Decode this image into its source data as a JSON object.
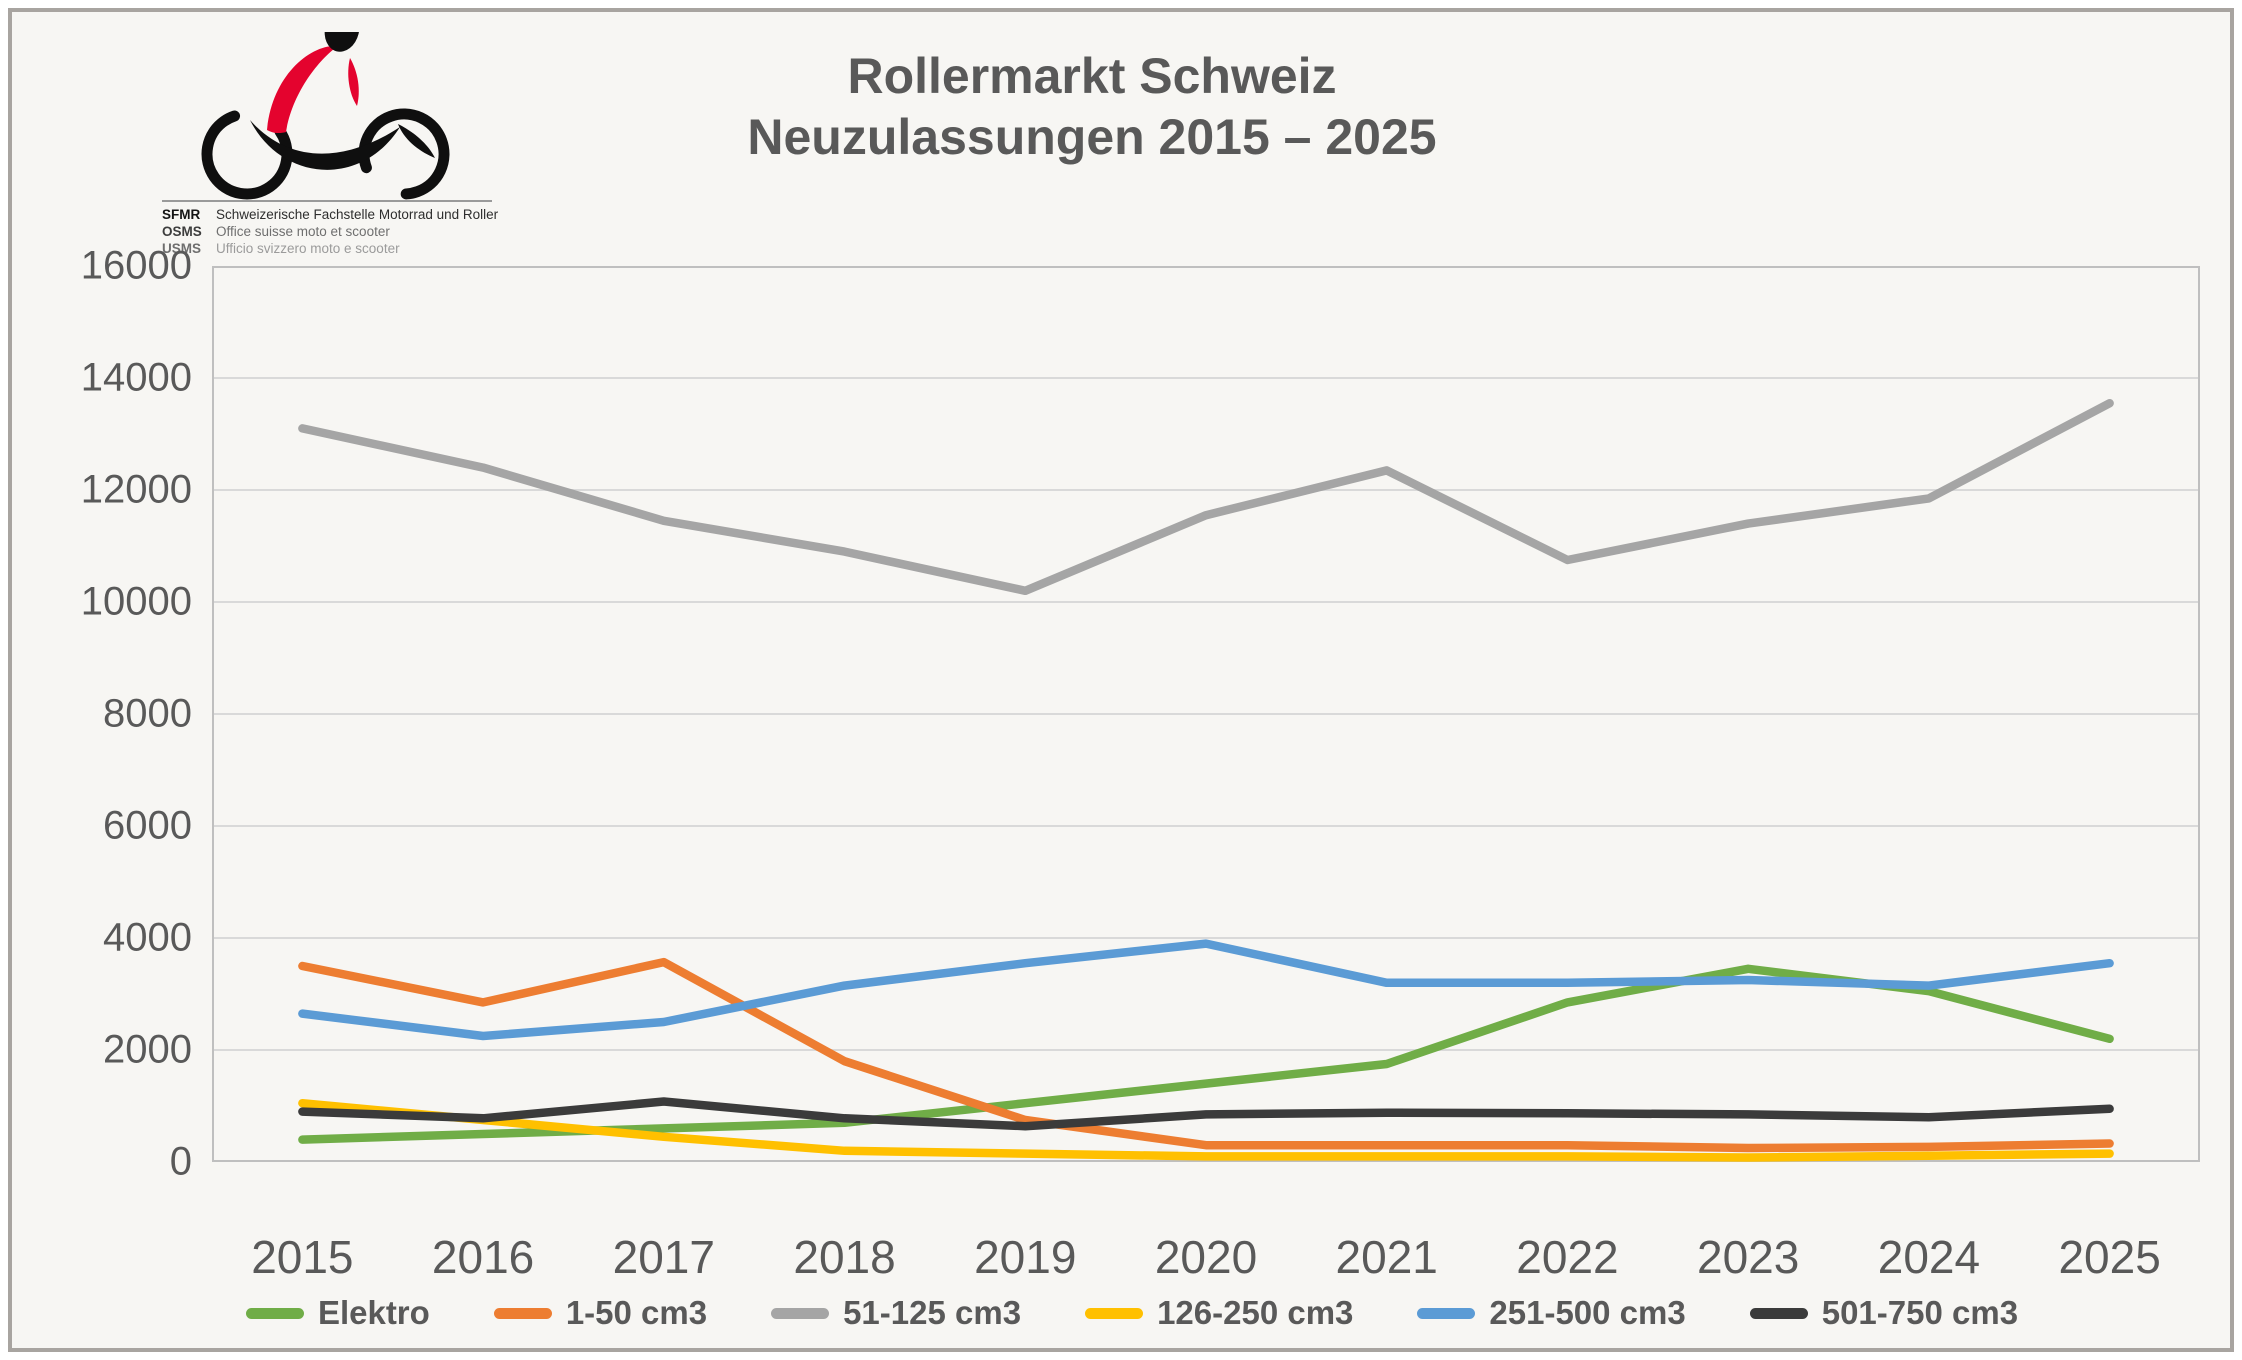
{
  "logo": {
    "rows": [
      {
        "abbr": "SFMR",
        "desc": "Schweizerische Fachstelle Motorrad und Roller"
      },
      {
        "abbr": "OSMS",
        "desc": "Office suisse moto et scooter"
      },
      {
        "abbr": "USMS",
        "desc": "Ufficio svizzero moto e scooter"
      }
    ],
    "accent_red": "#e4032e",
    "black": "#0f0f0f"
  },
  "title": {
    "line1": "Rollermarkt Schweiz",
    "line2": "Neuzulassungen 2015 – 2025"
  },
  "chart_data": {
    "type": "line",
    "title": "Rollermarkt Schweiz – Neuzulassungen 2015 – 2025",
    "categories": [
      "2015",
      "2016",
      "2017",
      "2018",
      "2019",
      "2020",
      "2021",
      "2022",
      "2023",
      "2024",
      "2025"
    ],
    "series": [
      {
        "name": "Elektro",
        "color": "#70AD47",
        "values": [
          400,
          500,
          600,
          700,
          1050,
          1400,
          1750,
          2850,
          3450,
          3050,
          2200
        ]
      },
      {
        "name": "1-50 cm3",
        "color": "#ED7D31",
        "values": [
          3500,
          2850,
          3570,
          1800,
          750,
          300,
          300,
          300,
          250,
          270,
          330
        ]
      },
      {
        "name": "51-125 cm3",
        "color": "#A5A5A5",
        "values": [
          13100,
          12400,
          11450,
          10900,
          10200,
          11550,
          12350,
          10750,
          11400,
          11850,
          13550
        ]
      },
      {
        "name": "126-250 cm3",
        "color": "#FFC000",
        "values": [
          1050,
          750,
          450,
          200,
          150,
          100,
          100,
          100,
          80,
          110,
          150
        ]
      },
      {
        "name": "251-500 cm3",
        "color": "#5B9BD5",
        "values": [
          2650,
          2250,
          2500,
          3150,
          3550,
          3900,
          3200,
          3200,
          3250,
          3150,
          3550
        ]
      },
      {
        "name": "501-750 cm3",
        "color": "#3B3B3B",
        "values": [
          900,
          780,
          1080,
          780,
          640,
          850,
          880,
          870,
          850,
          800,
          950
        ]
      }
    ],
    "xlabel": "",
    "ylabel": "",
    "ylim": [
      0,
      16000
    ],
    "ytick_step": 2000,
    "grid": true,
    "legend_position": "bottom",
    "gridline_color": "#d9d9d9",
    "border_color": "#bfbfbf",
    "text_color": "#595959"
  }
}
